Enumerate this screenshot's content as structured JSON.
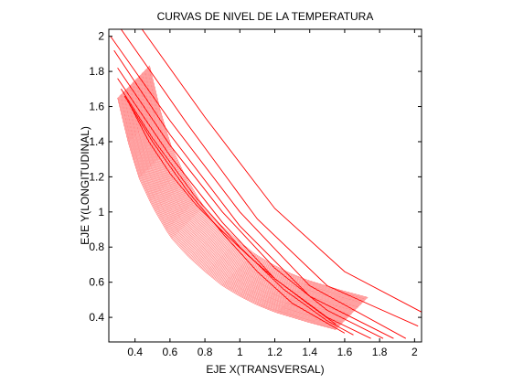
{
  "chart_data": {
    "type": "line",
    "title": "CURVAS DE NIVEL DE LA TEMPERATURA",
    "xlabel": "EJE X(TRANSVERSAL)",
    "ylabel": "EJE Y(LONGITUDINAL)",
    "xlim": [
      0.25,
      2.04
    ],
    "ylim": [
      0.26,
      2.04
    ],
    "xticks": [
      "0.4",
      "0.6",
      "0.8",
      "1",
      "1.2",
      "1.4",
      "1.6",
      "1.8",
      "2"
    ],
    "yticks": [
      "0.4",
      "0.6",
      "0.8",
      "1",
      "1.2",
      "1.4",
      "1.6",
      "1.8",
      "2"
    ],
    "grid": false,
    "series_color": "#ff0000",
    "boundary": {
      "x": [
        0.3,
        0.36,
        0.42,
        0.5,
        0.6,
        0.7,
        0.8,
        0.9,
        1.0,
        1.1,
        1.2,
        1.4,
        1.55
      ],
      "y": [
        1.65,
        1.4,
        1.2,
        1.03,
        0.86,
        0.75,
        0.66,
        0.58,
        0.52,
        0.47,
        0.43,
        0.37,
        0.33
      ]
    },
    "levels": [
      {
        "x": [
          0.36,
          0.48,
          0.6,
          0.75,
          0.9,
          1.05,
          1.2,
          1.4,
          1.55
        ],
        "y": [
          1.63,
          1.4,
          1.22,
          1.04,
          0.89,
          0.75,
          0.62,
          0.47,
          0.36
        ]
      },
      {
        "x": [
          0.34,
          0.5,
          0.7,
          0.9,
          1.1,
          1.3,
          1.6
        ],
        "y": [
          1.66,
          1.4,
          1.12,
          0.88,
          0.66,
          0.48,
          0.31
        ]
      },
      {
        "x": [
          0.32,
          0.5,
          0.75,
          1.0,
          1.25,
          1.5,
          1.65
        ],
        "y": [
          1.7,
          1.42,
          1.08,
          0.8,
          0.56,
          0.38,
          0.3
        ]
      },
      {
        "x": [
          0.3,
          0.6,
          0.9,
          1.2,
          1.5,
          1.75
        ],
        "y": [
          1.76,
          1.32,
          0.94,
          0.62,
          0.4,
          0.28
        ]
      },
      {
        "x": [
          0.3,
          0.6,
          0.9,
          1.2,
          1.5,
          1.82
        ],
        "y": [
          1.82,
          1.38,
          1.0,
          0.68,
          0.44,
          0.28
        ]
      },
      {
        "x": [
          0.28,
          0.6,
          1.0,
          1.4,
          1.88
        ],
        "y": [
          1.92,
          1.44,
          0.92,
          0.52,
          0.28
        ]
      },
      {
        "x": [
          0.26,
          0.6,
          1.0,
          1.4,
          1.95
        ],
        "y": [
          2.0,
          1.52,
          1.0,
          0.58,
          0.28
        ]
      },
      {
        "x": [
          0.32,
          0.7,
          1.1,
          1.5,
          2.02
        ],
        "y": [
          2.04,
          1.5,
          0.96,
          0.58,
          0.35
        ]
      },
      {
        "x": [
          0.44,
          0.8,
          1.2,
          1.6,
          2.04
        ],
        "y": [
          2.04,
          1.54,
          1.02,
          0.66,
          0.43
        ]
      }
    ]
  }
}
